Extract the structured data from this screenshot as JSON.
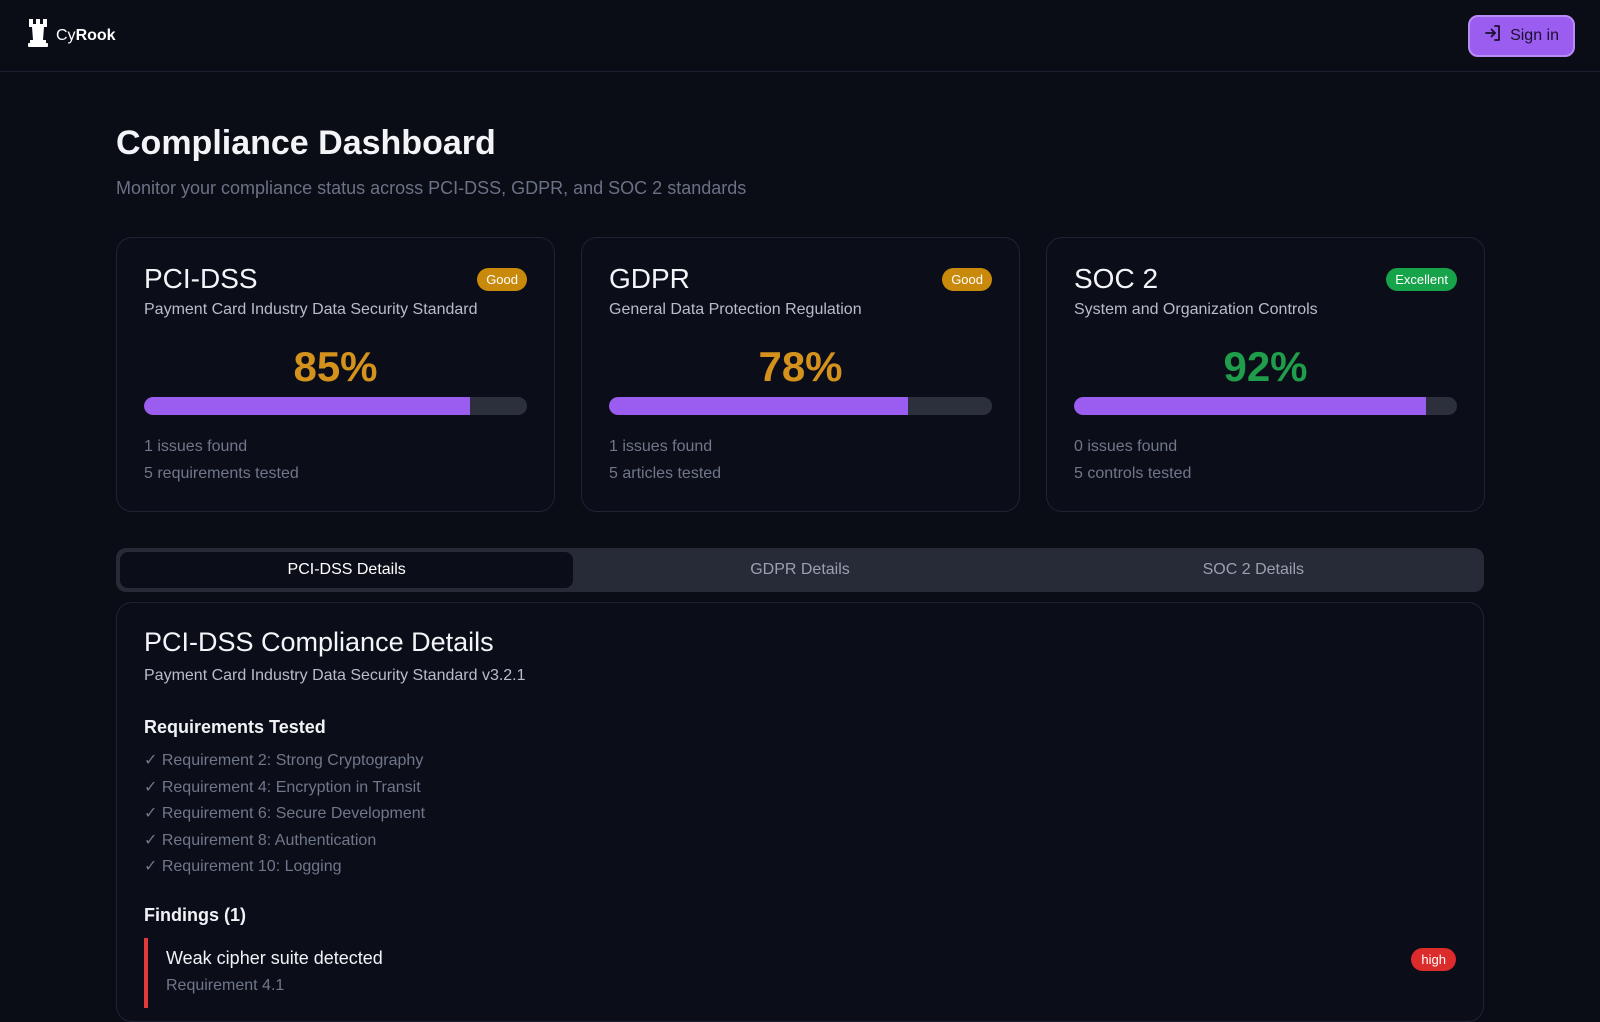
{
  "header": {
    "brand_prefix": "Cy",
    "brand_suffix": "Rook",
    "signin_label": "Sign in"
  },
  "page": {
    "title": "Compliance Dashboard",
    "subtitle": "Monitor your compliance status across PCI-DSS, GDPR, and SOC 2 standards"
  },
  "cards": [
    {
      "title": "PCI-DSS",
      "badge": "Good",
      "badge_color": "#c98a0c",
      "description": "Payment Card Industry Data Security Standard",
      "percent": "85%",
      "percent_color": "#d4921c",
      "progress": 0.85,
      "issues": "1 issues found",
      "tested": "5 requirements tested"
    },
    {
      "title": "GDPR",
      "badge": "Good",
      "badge_color": "#c98a0c",
      "description": "General Data Protection Regulation",
      "percent": "78%",
      "percent_color": "#d4921c",
      "progress": 0.78,
      "issues": "1 issues found",
      "tested": "5 articles tested"
    },
    {
      "title": "SOC 2",
      "badge": "Excellent",
      "badge_color": "#17a34a",
      "description": "System and Organization Controls",
      "percent": "92%",
      "percent_color": "#1f9d4a",
      "progress": 0.92,
      "issues": "0 issues found",
      "tested": "5 controls tested"
    }
  ],
  "tabs": [
    {
      "label": "PCI-DSS Details",
      "active": true
    },
    {
      "label": "GDPR Details",
      "active": false
    },
    {
      "label": "SOC 2 Details",
      "active": false
    }
  ],
  "details": {
    "title": "PCI-DSS Compliance Details",
    "subtitle": "Payment Card Industry Data Security Standard v3.2.1",
    "requirements_heading": "Requirements Tested",
    "requirements": [
      "✓ Requirement 2: Strong Cryptography",
      "✓ Requirement 4: Encryption in Transit",
      "✓ Requirement 6: Secure Development",
      "✓ Requirement 8: Authentication",
      "✓ Requirement 10: Logging"
    ],
    "findings_heading": "Findings (1)",
    "findings": [
      {
        "title": "Weak cipher suite detected",
        "reference": "Requirement 4.1",
        "severity": "high"
      }
    ]
  },
  "colors": {
    "accent": "#9b5cf0",
    "background": "#0a0c16",
    "severity_high": "#dc2b2b"
  },
  "icons": {
    "logo": "rook-chess-icon",
    "signin": "sign-in-icon"
  }
}
